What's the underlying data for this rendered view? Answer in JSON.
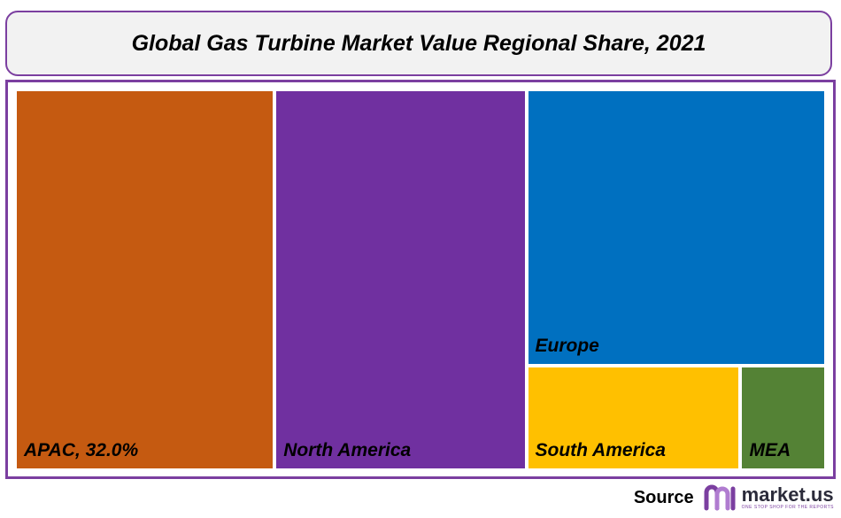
{
  "chart_data": {
    "type": "treemap",
    "title": "Global Gas Turbine Market Value Regional Share, 2021",
    "segments": [
      {
        "label": "APAC, 32.0%",
        "region": "APAC",
        "value": 32.0,
        "color": "#c55a11"
      },
      {
        "label": "North America",
        "region": "North America",
        "value": 31.0,
        "color": "#7030a0"
      },
      {
        "label": "Europe",
        "region": "Europe",
        "value": 27.0,
        "color": "#0070c0"
      },
      {
        "label": "South America",
        "region": "South America",
        "value": 7.2,
        "color": "#ffc000"
      },
      {
        "label": "MEA",
        "region": "MEA",
        "value": 2.8,
        "color": "#548235"
      }
    ]
  },
  "footer": {
    "source_label": "Source",
    "logo_name": "market.us",
    "logo_tagline": "ONE STOP SHOP FOR THE REPORTS"
  },
  "colors": {
    "border": "#7b3fa0",
    "title_bg": "#f2f2f2"
  }
}
